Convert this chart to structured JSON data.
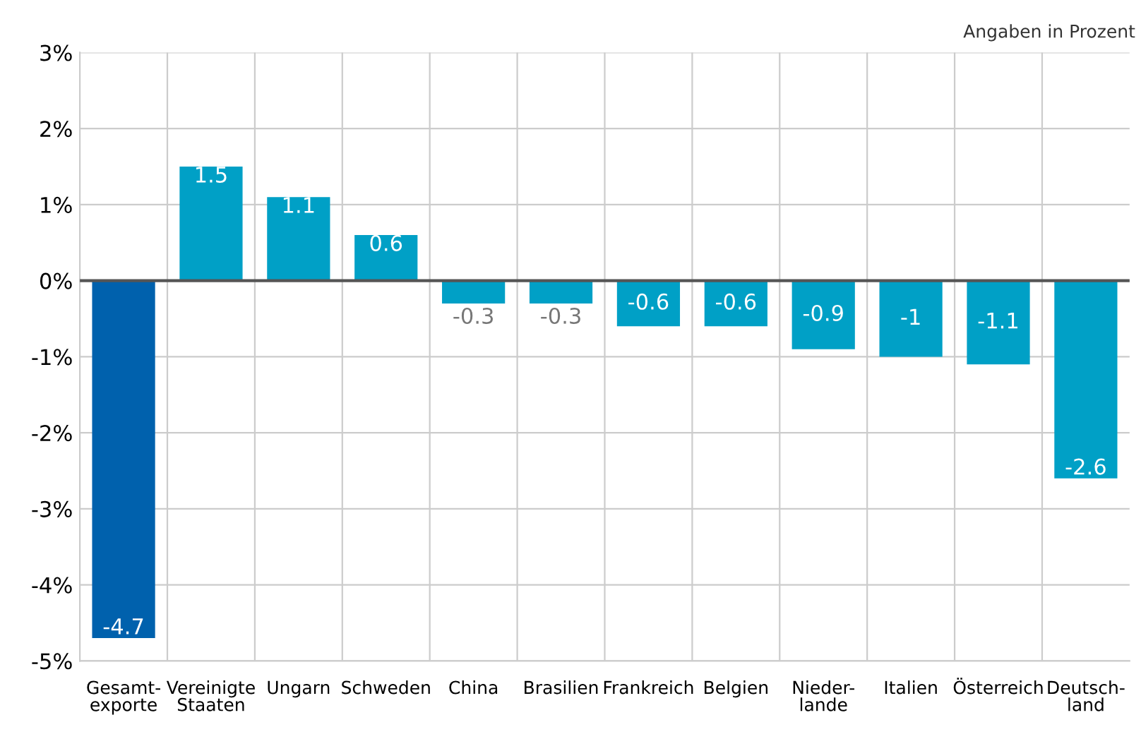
{
  "chart_data": {
    "type": "bar",
    "categories": [
      "Gesamt-\nexporte",
      "Vereinigte\nStaaten",
      "Ungarn",
      "Schweden",
      "China",
      "Brasilien",
      "Frankreich",
      "Belgien",
      "Nieder-\nlande",
      "Italien",
      "Österreich",
      "Deutsch-\nland"
    ],
    "values": [
      -4.7,
      1.5,
      1.1,
      0.6,
      -0.3,
      -0.3,
      -0.6,
      -0.6,
      -0.9,
      -1,
      -1.1,
      -2.6
    ],
    "colors": [
      "#0061ad",
      "#00a0c6",
      "#00a0c6",
      "#00a0c6",
      "#00a0c6",
      "#00a0c6",
      "#00a0c6",
      "#00a0c6",
      "#00a0c6",
      "#00a0c6",
      "#00a0c6",
      "#00a0c6"
    ],
    "ylim": [
      -5,
      3
    ],
    "yticks": [
      {
        "value": -5,
        "label": "-5%"
      },
      {
        "value": -4,
        "label": "-4%"
      },
      {
        "value": -3,
        "label": "-3%"
      },
      {
        "value": -2,
        "label": "-2%"
      },
      {
        "value": -1,
        "label": "-1%"
      },
      {
        "value": 0,
        "label": "0%"
      },
      {
        "value": 1,
        "label": "1%"
      },
      {
        "value": 2,
        "label": "2%"
      },
      {
        "value": 3,
        "label": "3%"
      }
    ],
    "grid": true,
    "data_labels": true,
    "annotations": [
      "Angaben in Prozent"
    ]
  }
}
